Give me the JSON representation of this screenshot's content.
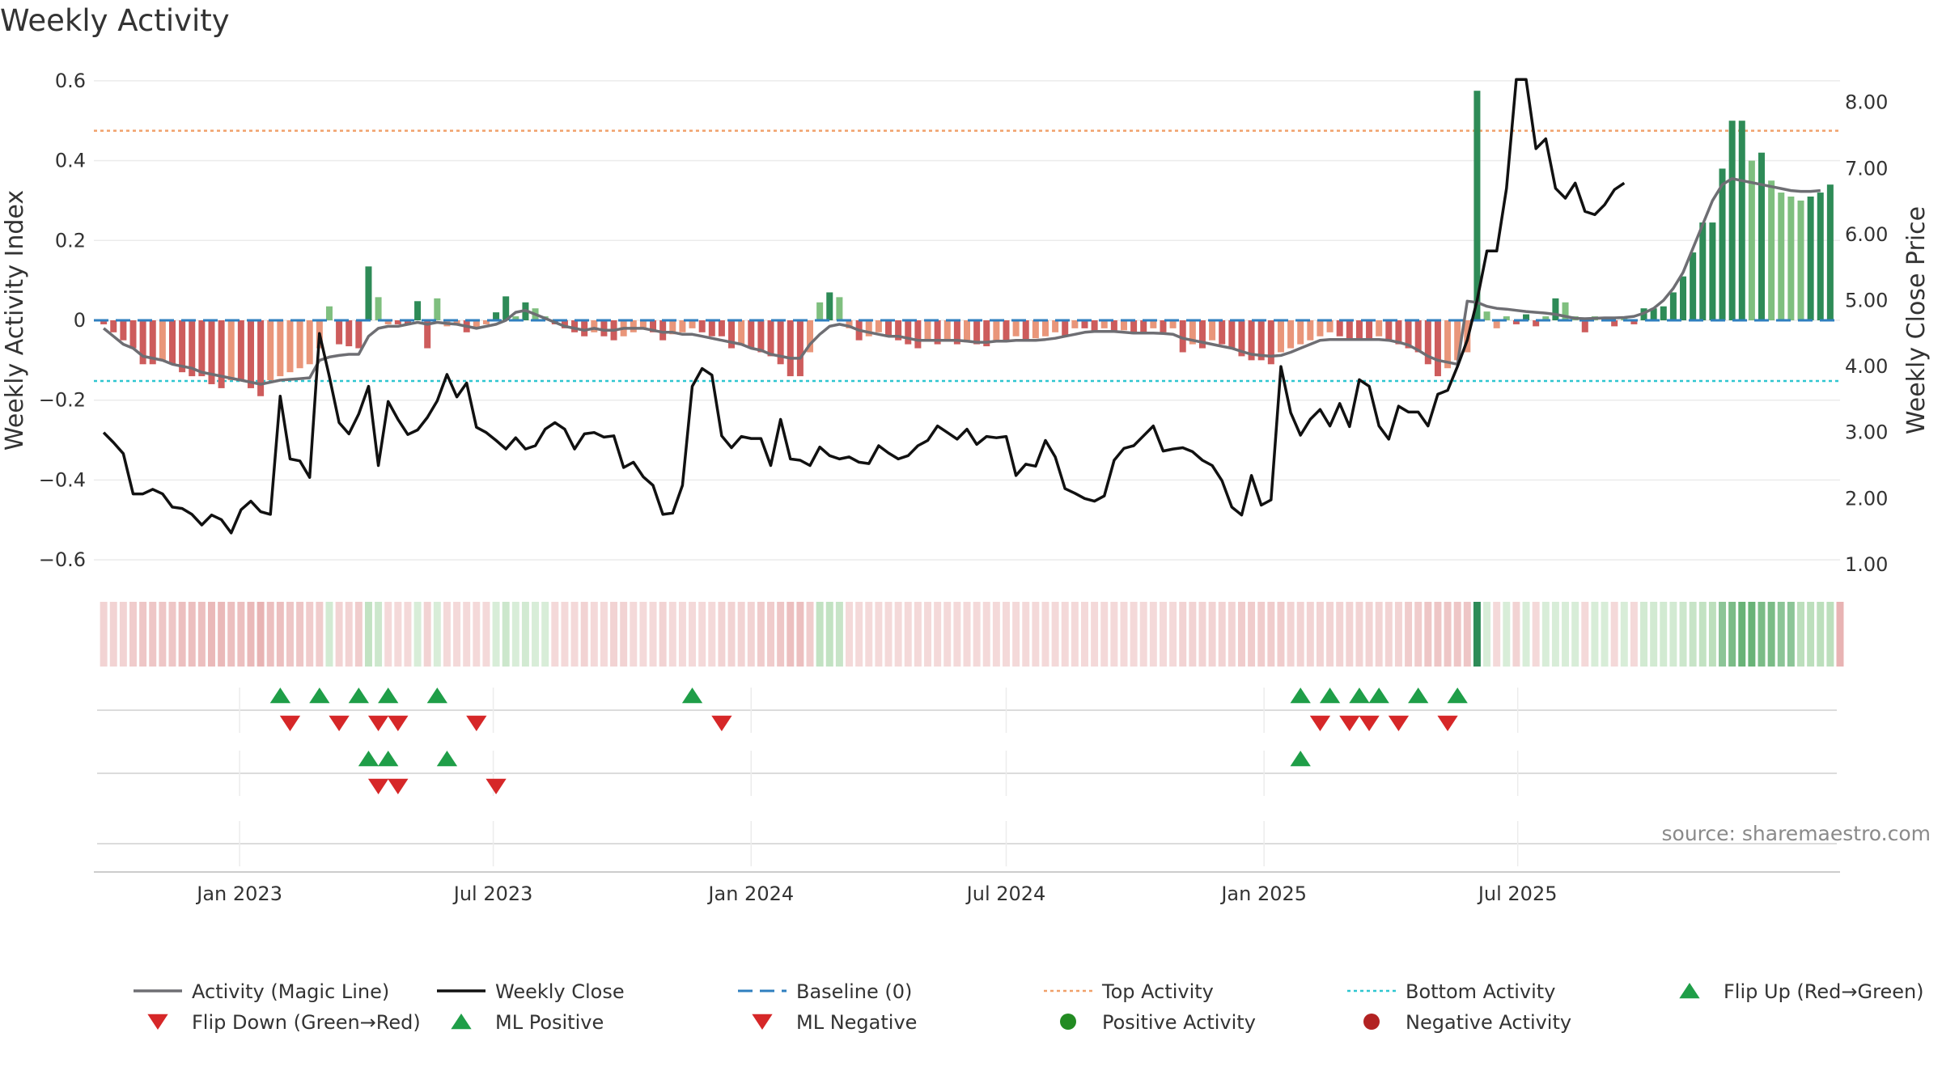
{
  "title": "Weekly Activity",
  "source": "source: sharemaestro.com",
  "colors": {
    "activity_line": "#6e6e73",
    "close_line": "#111111",
    "baseline": "#2f7fbf",
    "top_activity": "#f0a06a",
    "bottom_activity": "#2ec6d0",
    "strong_green": "#2e8b57",
    "light_green": "#7fbf7f",
    "strong_red": "#cd5c5c",
    "light_red": "#e9967a",
    "marker_up": "#1f9e48",
    "marker_down": "#d62728",
    "positive_dot": "#228b22",
    "negative_dot": "#b22222"
  },
  "chart_data": {
    "type": "bar",
    "x_start": "2022-09-26",
    "x_interval": "week",
    "y_label": "Weekly Activity Index",
    "y2_label": "Weekly Close Price",
    "ylim": [
      -0.62,
      0.62
    ],
    "y2lim": [
      0.95,
      8.45
    ],
    "y_ticks": [
      "0.6",
      "0.4",
      "0.2",
      "0",
      "−0.2",
      "−0.4",
      "−0.6"
    ],
    "y2_ticks": [
      "8.00",
      "7.00",
      "6.00",
      "5.00",
      "4.00",
      "3.00",
      "2.00",
      "1.00"
    ],
    "x_ticks": [
      "Jan 2023",
      "Jul 2023",
      "Jan 2024",
      "Jul 2024",
      "Jan 2025",
      "Jul 2025"
    ],
    "top_activity": 0.475,
    "bottom_activity": -0.152,
    "baseline": 0,
    "activity": [
      -0.01,
      -0.03,
      -0.05,
      -0.07,
      -0.11,
      -0.11,
      -0.1,
      -0.11,
      -0.13,
      -0.14,
      -0.14,
      -0.16,
      -0.17,
      -0.15,
      -0.15,
      -0.17,
      -0.19,
      -0.15,
      -0.14,
      -0.13,
      -0.12,
      -0.11,
      -0.07,
      0.035,
      -0.06,
      -0.065,
      -0.07,
      0.135,
      0.058,
      -0.01,
      -0.01,
      -0.01,
      0.048,
      -0.07,
      0.055,
      -0.015,
      -0.01,
      -0.03,
      -0.02,
      -0.01,
      0.02,
      0.06,
      0.01,
      0.045,
      0.03,
      0.01,
      -0.01,
      -0.02,
      -0.03,
      -0.04,
      -0.03,
      -0.04,
      -0.05,
      -0.04,
      -0.03,
      -0.02,
      -0.03,
      -0.05,
      -0.035,
      -0.03,
      -0.02,
      -0.03,
      -0.04,
      -0.04,
      -0.07,
      -0.06,
      -0.07,
      -0.08,
      -0.09,
      -0.11,
      -0.14,
      -0.14,
      -0.08,
      0.045,
      0.07,
      0.058,
      -0.02,
      -0.05,
      -0.04,
      -0.03,
      -0.04,
      -0.05,
      -0.06,
      -0.07,
      -0.05,
      -0.06,
      -0.05,
      -0.06,
      -0.055,
      -0.06,
      -0.065,
      -0.05,
      -0.05,
      -0.04,
      -0.05,
      -0.045,
      -0.04,
      -0.03,
      -0.04,
      -0.02,
      -0.02,
      -0.03,
      -0.02,
      -0.03,
      -0.025,
      -0.03,
      -0.03,
      -0.02,
      -0.03,
      -0.02,
      -0.08,
      -0.06,
      -0.07,
      -0.05,
      -0.06,
      -0.07,
      -0.09,
      -0.1,
      -0.1,
      -0.11,
      -0.08,
      -0.07,
      -0.06,
      -0.05,
      -0.04,
      -0.03,
      -0.04,
      -0.05,
      -0.05,
      -0.05,
      -0.04,
      -0.05,
      -0.06,
      -0.07,
      -0.08,
      -0.11,
      -0.14,
      -0.12,
      -0.1,
      -0.08,
      0.575,
      0.022,
      -0.02,
      0.01,
      -0.01,
      0.015,
      -0.015,
      0.01,
      0.055,
      0.045,
      0.01,
      -0.03,
      0.01,
      0.008,
      -0.015,
      0.01,
      -0.01,
      0.03,
      0.03,
      0.035,
      0.07,
      0.11,
      0.17,
      0.245,
      0.245,
      0.38,
      0.5,
      0.5,
      0.4,
      0.42,
      0.35,
      0.32,
      0.31,
      0.3,
      0.31,
      0.32,
      0.34
    ],
    "activity_line": [
      -0.02,
      -0.04,
      -0.06,
      -0.07,
      -0.09,
      -0.095,
      -0.1,
      -0.11,
      -0.115,
      -0.12,
      -0.13,
      -0.135,
      -0.14,
      -0.145,
      -0.15,
      -0.155,
      -0.16,
      -0.155,
      -0.15,
      -0.148,
      -0.146,
      -0.144,
      -0.1,
      -0.092,
      -0.088,
      -0.085,
      -0.085,
      -0.04,
      -0.02,
      -0.015,
      -0.015,
      -0.01,
      -0.005,
      -0.01,
      -0.005,
      -0.008,
      -0.01,
      -0.015,
      -0.02,
      -0.015,
      -0.01,
      0.0,
      0.02,
      0.025,
      0.015,
      0.005,
      -0.005,
      -0.015,
      -0.02,
      -0.025,
      -0.02,
      -0.025,
      -0.025,
      -0.02,
      -0.02,
      -0.02,
      -0.025,
      -0.03,
      -0.03,
      -0.035,
      -0.035,
      -0.04,
      -0.045,
      -0.05,
      -0.055,
      -0.06,
      -0.07,
      -0.075,
      -0.085,
      -0.09,
      -0.095,
      -0.095,
      -0.06,
      -0.035,
      -0.015,
      -0.01,
      -0.015,
      -0.025,
      -0.03,
      -0.035,
      -0.04,
      -0.04,
      -0.045,
      -0.05,
      -0.05,
      -0.05,
      -0.05,
      -0.05,
      -0.052,
      -0.055,
      -0.055,
      -0.052,
      -0.052,
      -0.05,
      -0.05,
      -0.05,
      -0.048,
      -0.045,
      -0.04,
      -0.035,
      -0.03,
      -0.028,
      -0.028,
      -0.028,
      -0.03,
      -0.032,
      -0.032,
      -0.032,
      -0.033,
      -0.035,
      -0.045,
      -0.05,
      -0.055,
      -0.06,
      -0.065,
      -0.07,
      -0.078,
      -0.085,
      -0.088,
      -0.09,
      -0.088,
      -0.08,
      -0.07,
      -0.06,
      -0.05,
      -0.048,
      -0.048,
      -0.048,
      -0.048,
      -0.048,
      -0.048,
      -0.05,
      -0.055,
      -0.062,
      -0.075,
      -0.09,
      -0.1,
      -0.105,
      -0.11,
      0.048,
      0.045,
      0.035,
      0.03,
      0.028,
      0.025,
      0.022,
      0.02,
      0.018,
      0.015,
      0.01,
      0.005,
      0.004,
      0.005,
      0.006,
      0.006,
      0.007,
      0.01,
      0.018,
      0.03,
      0.05,
      0.08,
      0.12,
      0.18,
      0.24,
      0.3,
      0.34,
      0.355,
      0.35,
      0.345,
      0.34,
      0.335,
      0.33,
      0.325,
      0.323,
      0.323,
      0.325
    ],
    "weekly_close": [
      3.0,
      2.85,
      2.68,
      2.07,
      2.07,
      2.14,
      2.07,
      1.87,
      1.85,
      1.76,
      1.6,
      1.75,
      1.68,
      1.48,
      1.83,
      1.96,
      1.8,
      1.76,
      3.55,
      2.6,
      2.57,
      2.32,
      4.5,
      3.85,
      3.15,
      2.98,
      3.28,
      3.7,
      2.5,
      3.47,
      3.2,
      2.97,
      3.04,
      3.23,
      3.48,
      3.88,
      3.54,
      3.75,
      3.08,
      3.0,
      2.88,
      2.75,
      2.92,
      2.75,
      2.8,
      3.05,
      3.15,
      3.05,
      2.75,
      2.98,
      3.0,
      2.93,
      2.95,
      2.47,
      2.55,
      2.33,
      2.2,
      1.76,
      1.78,
      2.2,
      3.7,
      3.97,
      3.87,
      2.95,
      2.77,
      2.94,
      2.91,
      2.91,
      2.5,
      3.2,
      2.6,
      2.58,
      2.5,
      2.78,
      2.65,
      2.6,
      2.63,
      2.55,
      2.53,
      2.8,
      2.69,
      2.6,
      2.65,
      2.8,
      2.88,
      3.1,
      3.0,
      2.9,
      3.05,
      2.82,
      2.94,
      2.92,
      2.94,
      2.35,
      2.52,
      2.49,
      2.88,
      2.63,
      2.15,
      2.08,
      2.0,
      1.96,
      2.04,
      2.58,
      2.76,
      2.8,
      2.95,
      3.1,
      2.72,
      2.75,
      2.77,
      2.71,
      2.58,
      2.5,
      2.27,
      1.87,
      1.75,
      2.35,
      1.9,
      1.98,
      4.0,
      3.3,
      2.96,
      3.2,
      3.35,
      3.1,
      3.44,
      3.09,
      3.8,
      3.7,
      3.1,
      2.9,
      3.4,
      3.31,
      3.31,
      3.1,
      3.58,
      3.64,
      4.0,
      4.4,
      5.0,
      5.75,
      5.75,
      6.7,
      8.35,
      8.35,
      7.3,
      7.45,
      6.7,
      6.55,
      6.78,
      6.35,
      6.3,
      6.45,
      6.68,
      6.78
    ],
    "heat_strip_intensity": [
      0.35,
      0.35,
      0.35,
      0.4,
      0.45,
      0.45,
      0.45,
      0.45,
      0.5,
      0.5,
      0.5,
      0.55,
      0.55,
      0.5,
      0.5,
      0.55,
      0.6,
      0.5,
      0.5,
      0.45,
      0.45,
      0.4,
      0.4,
      0.35,
      0.35,
      0.35,
      0.4,
      0.5,
      0.4,
      0.3,
      0.3,
      0.3,
      0.3,
      0.35,
      0.3,
      0.3,
      0.3,
      0.3,
      0.3,
      0.3,
      0.3,
      0.4,
      0.3,
      0.35,
      0.3,
      0.3,
      0.3,
      0.3,
      0.3,
      0.35,
      0.3,
      0.3,
      0.35,
      0.35,
      0.3,
      0.3,
      0.3,
      0.35,
      0.3,
      0.3,
      0.3,
      0.3,
      0.3,
      0.35,
      0.35,
      0.35,
      0.35,
      0.4,
      0.4,
      0.45,
      0.5,
      0.5,
      0.4,
      0.5,
      0.5,
      0.45,
      0.3,
      0.3,
      0.3,
      0.3,
      0.3,
      0.3,
      0.3,
      0.3,
      0.3,
      0.3,
      0.3,
      0.3,
      0.3,
      0.3,
      0.3,
      0.3,
      0.3,
      0.3,
      0.3,
      0.3,
      0.3,
      0.3,
      0.3,
      0.3,
      0.3,
      0.3,
      0.3,
      0.3,
      0.3,
      0.3,
      0.3,
      0.3,
      0.3,
      0.3,
      0.35,
      0.35,
      0.35,
      0.35,
      0.35,
      0.35,
      0.4,
      0.4,
      0.4,
      0.4,
      0.4,
      0.35,
      0.35,
      0.35,
      0.35,
      0.35,
      0.35,
      0.35,
      0.35,
      0.35,
      0.35,
      0.35,
      0.35,
      0.4,
      0.4,
      0.45,
      0.45,
      0.45,
      0.45,
      0.45,
      1.0,
      0.3,
      0.3,
      0.3,
      0.35,
      0.3,
      0.3,
      0.3,
      0.3,
      0.3,
      0.3,
      0.3,
      0.3,
      0.3,
      0.3,
      0.3,
      0.3,
      0.35,
      0.35,
      0.35,
      0.35,
      0.4,
      0.45,
      0.5,
      0.55,
      0.6,
      0.7,
      0.8,
      0.8,
      0.7,
      0.7,
      0.6,
      0.6,
      0.55,
      0.55,
      0.55,
      0.55,
      0.6
    ],
    "marker_rows": [
      {
        "up": [
          18,
          22,
          26,
          29,
          34,
          60,
          122,
          125,
          128,
          130,
          134,
          138
        ],
        "down": [
          19,
          24,
          28,
          30,
          38,
          63,
          124,
          127,
          129,
          132,
          137
        ]
      },
      {
        "up": [
          27,
          29,
          35,
          122
        ],
        "down": [
          28,
          30,
          40
        ]
      },
      {
        "up": [],
        "down": []
      }
    ]
  },
  "legend": [
    {
      "label": "Activity (Magic Line)",
      "symbol": "line",
      "color": "#6e6e73"
    },
    {
      "label": "Weekly Close",
      "symbol": "line",
      "color": "#111111"
    },
    {
      "label": "Baseline (0)",
      "symbol": "dash",
      "color": "#2f7fbf"
    },
    {
      "label": "Top Activity",
      "symbol": "dot-line",
      "color": "#f0a06a"
    },
    {
      "label": "Bottom Activity",
      "symbol": "dot-line",
      "color": "#2ec6d0"
    },
    {
      "label": "Flip Up (Red→Green)",
      "symbol": "triangle-up",
      "color": "#1f9e48"
    },
    {
      "label": "Flip Down (Green→Red)",
      "symbol": "triangle-down",
      "color": "#d62728"
    },
    {
      "label": "ML Positive",
      "symbol": "triangle-up",
      "color": "#1f9e48"
    },
    {
      "label": "ML Negative",
      "symbol": "triangle-down",
      "color": "#d62728"
    },
    {
      "label": "Positive Activity",
      "symbol": "circle",
      "color": "#228b22"
    },
    {
      "label": "Negative Activity",
      "symbol": "circle",
      "color": "#b22222"
    }
  ]
}
